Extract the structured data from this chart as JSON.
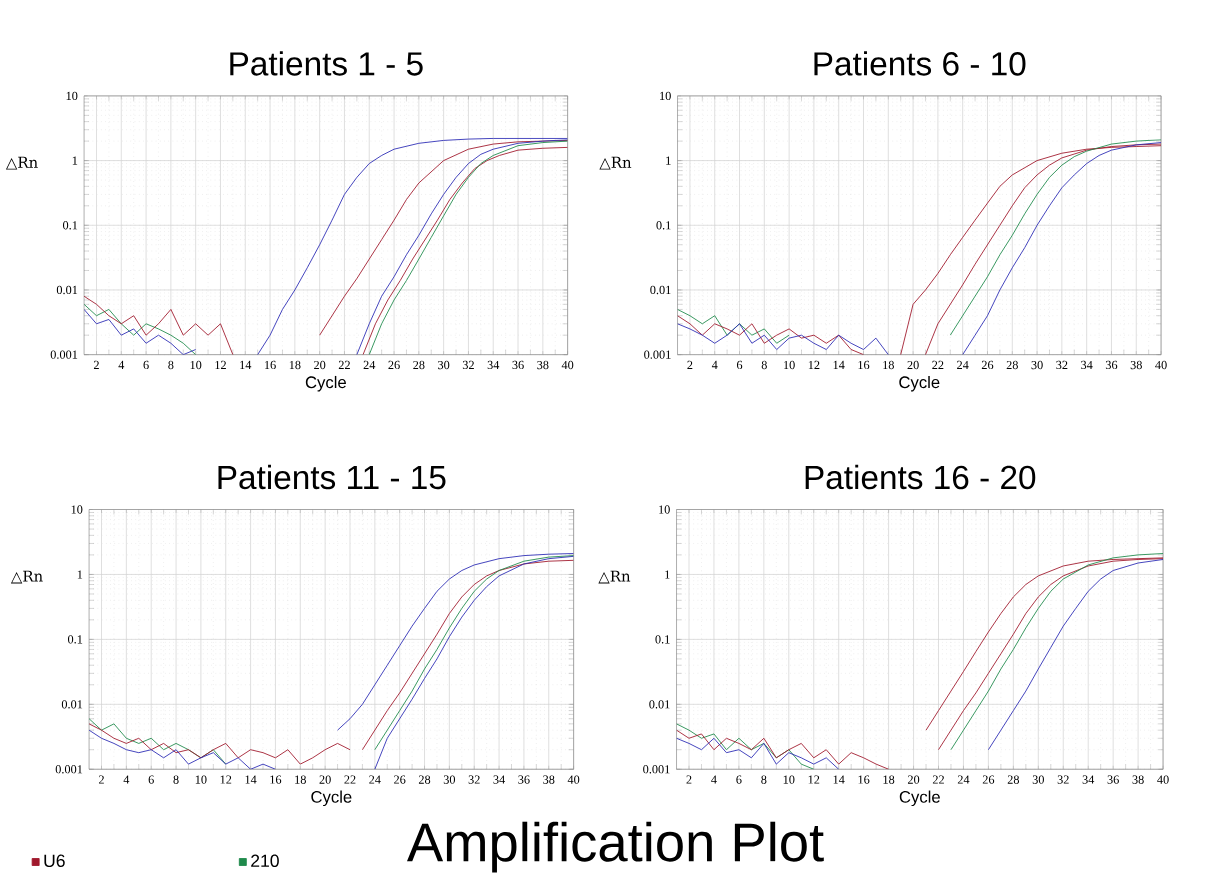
{
  "chart_data": [
    {
      "type": "line",
      "title": "Patients 1 - 5",
      "xlabel": "Cycle",
      "ylabel": "△Rn",
      "log": "y",
      "grid": true,
      "xlim": [
        1,
        40
      ],
      "ylim": [
        0.001,
        10
      ],
      "xticks": [
        2,
        4,
        6,
        8,
        10,
        12,
        14,
        16,
        18,
        20,
        22,
        24,
        26,
        28,
        30,
        32,
        34,
        36,
        38,
        40
      ],
      "yticks": [
        0.001,
        0.01,
        0.1,
        1,
        10
      ],
      "series": [
        {
          "color": "#1f8a4c",
          "x": [
            1,
            2,
            3,
            4,
            5,
            6,
            7,
            8,
            9,
            10
          ],
          "values": [
            0.006,
            0.004,
            0.005,
            0.003,
            0.002,
            0.003,
            0.0025,
            0.002,
            0.0015,
            0.001
          ]
        },
        {
          "color": "#a0182c",
          "x": [
            1,
            2,
            3,
            4,
            5,
            6,
            7,
            8,
            9,
            10,
            11,
            12,
            13
          ],
          "values": [
            0.008,
            0.006,
            0.004,
            0.003,
            0.004,
            0.002,
            0.003,
            0.005,
            0.002,
            0.003,
            0.002,
            0.003,
            0.001
          ]
        },
        {
          "color": "#2b2bb5",
          "x": [
            1,
            2,
            3,
            4,
            5,
            6,
            7,
            8,
            9,
            10
          ],
          "values": [
            0.005,
            0.003,
            0.0035,
            0.002,
            0.0025,
            0.0015,
            0.002,
            0.0015,
            0.001,
            0.0012
          ]
        },
        {
          "color": "#2b2bb5",
          "x": [
            15,
            16,
            17,
            18,
            19,
            20,
            21,
            22,
            23,
            24,
            25,
            26,
            28,
            30,
            32,
            34,
            36,
            38,
            40
          ],
          "values": [
            0.001,
            0.002,
            0.005,
            0.01,
            0.022,
            0.05,
            0.12,
            0.3,
            0.55,
            0.9,
            1.2,
            1.5,
            1.85,
            2.05,
            2.15,
            2.2,
            2.2,
            2.2,
            2.2
          ]
        },
        {
          "color": "#a0182c",
          "x": [
            20,
            21,
            22,
            23,
            24,
            25,
            26,
            27,
            28,
            30,
            32,
            34,
            36,
            38,
            40
          ],
          "values": [
            0.002,
            0.004,
            0.008,
            0.015,
            0.03,
            0.06,
            0.12,
            0.25,
            0.45,
            1.0,
            1.5,
            1.8,
            1.95,
            2.0,
            2.05
          ]
        },
        {
          "color": "#2b2bb5",
          "x": [
            23,
            24,
            25,
            26,
            27,
            28,
            29,
            30,
            31,
            32,
            33,
            34,
            36,
            38,
            40
          ],
          "values": [
            0.001,
            0.003,
            0.008,
            0.016,
            0.035,
            0.07,
            0.15,
            0.3,
            0.55,
            0.9,
            1.25,
            1.5,
            1.85,
            2.0,
            2.1
          ]
        },
        {
          "color": "#a0182c",
          "x": [
            23.5,
            24.5,
            25.5,
            26.5,
            27.5,
            28.5,
            29.5,
            30.5,
            31.5,
            32.5,
            33.5,
            34.5,
            36,
            38,
            40
          ],
          "values": [
            0.001,
            0.003,
            0.007,
            0.014,
            0.03,
            0.06,
            0.12,
            0.25,
            0.45,
            0.75,
            1.0,
            1.2,
            1.45,
            1.55,
            1.6
          ]
        },
        {
          "color": "#1f8a4c",
          "x": [
            24,
            25,
            26,
            27,
            28,
            29,
            30,
            31,
            32,
            33,
            34,
            36,
            38,
            40
          ],
          "values": [
            0.001,
            0.003,
            0.007,
            0.014,
            0.03,
            0.065,
            0.14,
            0.3,
            0.55,
            0.9,
            1.2,
            1.7,
            1.9,
            2.0
          ]
        }
      ]
    },
    {
      "type": "line",
      "title": "Patients 6 - 10",
      "xlabel": "Cycle",
      "ylabel": "△Rn",
      "log": "y",
      "grid": true,
      "xlim": [
        1,
        40
      ],
      "ylim": [
        0.001,
        10
      ],
      "xticks": [
        2,
        4,
        6,
        8,
        10,
        12,
        14,
        16,
        18,
        20,
        22,
        24,
        26,
        28,
        30,
        32,
        34,
        36,
        38,
        40
      ],
      "yticks": [
        0.001,
        0.01,
        0.1,
        1,
        10
      ],
      "series": [
        {
          "color": "#1f8a4c",
          "x": [
            1,
            2,
            3,
            4,
            5,
            6,
            7,
            8,
            9,
            10
          ],
          "values": [
            0.005,
            0.004,
            0.003,
            0.004,
            0.002,
            0.003,
            0.002,
            0.0025,
            0.0015,
            0.002
          ]
        },
        {
          "color": "#a0182c",
          "x": [
            1,
            2,
            3,
            4,
            5,
            6,
            7,
            8,
            9,
            10,
            11,
            12,
            13,
            14,
            15,
            16
          ],
          "values": [
            0.004,
            0.003,
            0.002,
            0.003,
            0.0025,
            0.002,
            0.003,
            0.0015,
            0.002,
            0.0025,
            0.0018,
            0.002,
            0.0015,
            0.002,
            0.0012,
            0.001
          ]
        },
        {
          "color": "#2b2bb5",
          "x": [
            1,
            2,
            3,
            4,
            5,
            6,
            7,
            8,
            9,
            10,
            11,
            12,
            13,
            14,
            15,
            16,
            17,
            18
          ],
          "values": [
            0.003,
            0.0025,
            0.002,
            0.0015,
            0.002,
            0.003,
            0.0015,
            0.002,
            0.0012,
            0.0018,
            0.002,
            0.0015,
            0.0012,
            0.002,
            0.0015,
            0.0012,
            0.0018,
            0.001
          ]
        },
        {
          "color": "#a0182c",
          "x": [
            19,
            20,
            21,
            22,
            23,
            24,
            25,
            26,
            27,
            28,
            30,
            32,
            34,
            36,
            38,
            40
          ],
          "values": [
            0.001,
            0.006,
            0.01,
            0.018,
            0.035,
            0.065,
            0.12,
            0.22,
            0.4,
            0.6,
            1.0,
            1.3,
            1.5,
            1.6,
            1.65,
            1.7
          ]
        },
        {
          "color": "#a0182c",
          "x": [
            21,
            22,
            23,
            24,
            25,
            26,
            27,
            28,
            29,
            30,
            31,
            32,
            34,
            36,
            38,
            40
          ],
          "values": [
            0.001,
            0.003,
            0.006,
            0.012,
            0.025,
            0.05,
            0.1,
            0.2,
            0.38,
            0.6,
            0.85,
            1.1,
            1.45,
            1.65,
            1.75,
            1.8
          ]
        },
        {
          "color": "#1f8a4c",
          "x": [
            23,
            24,
            25,
            26,
            27,
            28,
            29,
            30,
            31,
            32,
            33,
            34,
            36,
            38,
            40
          ],
          "values": [
            0.002,
            0.004,
            0.008,
            0.016,
            0.035,
            0.07,
            0.15,
            0.3,
            0.55,
            0.85,
            1.15,
            1.4,
            1.8,
            2.0,
            2.1
          ]
        },
        {
          "color": "#2b2bb5",
          "x": [
            24,
            25,
            26,
            27,
            28,
            29,
            30,
            31,
            32,
            33,
            34,
            35,
            36,
            38,
            40
          ],
          "values": [
            0.001,
            0.002,
            0.004,
            0.01,
            0.022,
            0.045,
            0.1,
            0.2,
            0.38,
            0.6,
            0.9,
            1.2,
            1.45,
            1.75,
            1.9
          ]
        }
      ]
    },
    {
      "type": "line",
      "title": "Patients 11  - 15",
      "xlabel": "Cycle",
      "ylabel": "△Rn",
      "log": "y",
      "grid": true,
      "legend": "bottom",
      "xlim": [
        1,
        40
      ],
      "ylim": [
        0.001,
        10
      ],
      "xticks": [
        2,
        4,
        6,
        8,
        10,
        12,
        14,
        16,
        18,
        20,
        22,
        24,
        26,
        28,
        30,
        32,
        34,
        36,
        38,
        40
      ],
      "yticks": [
        0.001,
        0.01,
        0.1,
        1,
        10
      ],
      "series": [
        {
          "color": "#1f8a4c",
          "x": [
            1,
            2,
            3,
            4,
            5,
            6,
            7,
            8,
            9,
            10,
            11,
            12
          ],
          "values": [
            0.006,
            0.004,
            0.005,
            0.003,
            0.0025,
            0.003,
            0.002,
            0.0025,
            0.002,
            0.0015,
            0.002,
            0.0012
          ]
        },
        {
          "color": "#a0182c",
          "x": [
            1,
            2,
            3,
            4,
            5,
            6,
            7,
            8,
            9,
            10,
            11,
            12,
            13,
            14,
            15,
            16,
            17,
            18,
            19,
            20,
            21,
            22
          ],
          "values": [
            0.005,
            0.004,
            0.003,
            0.0025,
            0.003,
            0.002,
            0.0025,
            0.0018,
            0.002,
            0.0015,
            0.002,
            0.0025,
            0.0015,
            0.002,
            0.0018,
            0.0015,
            0.002,
            0.0012,
            0.0015,
            0.002,
            0.0025,
            0.002
          ]
        },
        {
          "color": "#2b2bb5",
          "x": [
            1,
            2,
            3,
            4,
            5,
            6,
            7,
            8,
            9,
            10,
            11,
            12,
            13,
            14,
            15,
            16
          ],
          "values": [
            0.004,
            0.003,
            0.0025,
            0.002,
            0.0018,
            0.002,
            0.0015,
            0.002,
            0.0012,
            0.0015,
            0.0018,
            0.0012,
            0.0015,
            0.001,
            0.0012,
            0.001
          ]
        },
        {
          "color": "#2b2bb5",
          "x": [
            21,
            22,
            23,
            24,
            25,
            26,
            27,
            28,
            29,
            30,
            31,
            32,
            34,
            36,
            38,
            40
          ],
          "values": [
            0.004,
            0.006,
            0.01,
            0.02,
            0.04,
            0.08,
            0.16,
            0.3,
            0.55,
            0.85,
            1.15,
            1.4,
            1.75,
            1.95,
            2.05,
            2.1
          ]
        },
        {
          "name": "U6",
          "color": "#a0182c",
          "x": [
            23,
            24,
            25,
            26,
            27,
            28,
            29,
            30,
            31,
            32,
            33,
            34,
            36,
            38,
            40
          ],
          "values": [
            0.002,
            0.004,
            0.008,
            0.015,
            0.03,
            0.06,
            0.12,
            0.25,
            0.45,
            0.7,
            0.95,
            1.15,
            1.45,
            1.6,
            1.65
          ]
        },
        {
          "name": "210",
          "color": "#1f8a4c",
          "x": [
            24,
            25,
            26,
            27,
            28,
            29,
            30,
            31,
            32,
            33,
            34,
            36,
            38,
            40
          ],
          "values": [
            0.002,
            0.004,
            0.008,
            0.016,
            0.035,
            0.07,
            0.15,
            0.3,
            0.55,
            0.85,
            1.15,
            1.6,
            1.85,
            1.95
          ]
        },
        {
          "color": "#2b2bb5",
          "x": [
            24,
            25,
            26,
            27,
            28,
            29,
            30,
            31,
            32,
            33,
            34,
            36,
            38,
            40
          ],
          "values": [
            0.001,
            0.003,
            0.006,
            0.012,
            0.025,
            0.05,
            0.11,
            0.22,
            0.4,
            0.65,
            0.95,
            1.45,
            1.75,
            1.9
          ]
        }
      ]
    },
    {
      "type": "line",
      "title": "Patients 16  - 20",
      "xlabel": "Cycle",
      "ylabel": "△Rn",
      "log": "y",
      "grid": true,
      "xlim": [
        1,
        40
      ],
      "ylim": [
        0.001,
        10
      ],
      "xticks": [
        2,
        4,
        6,
        8,
        10,
        12,
        14,
        16,
        18,
        20,
        22,
        24,
        26,
        28,
        30,
        32,
        34,
        36,
        38,
        40
      ],
      "yticks": [
        0.001,
        0.01,
        0.1,
        1,
        10
      ],
      "series": [
        {
          "color": "#1f8a4c",
          "x": [
            1,
            2,
            3,
            4,
            5,
            6,
            7,
            8,
            9,
            10,
            11,
            12
          ],
          "values": [
            0.005,
            0.004,
            0.003,
            0.0035,
            0.002,
            0.003,
            0.002,
            0.0025,
            0.0015,
            0.002,
            0.0012,
            0.001
          ]
        },
        {
          "color": "#a0182c",
          "x": [
            1,
            2,
            3,
            4,
            5,
            6,
            7,
            8,
            9,
            10,
            11,
            12,
            13,
            14,
            15,
            16,
            17,
            18
          ],
          "values": [
            0.004,
            0.003,
            0.0035,
            0.002,
            0.003,
            0.0025,
            0.002,
            0.003,
            0.0015,
            0.002,
            0.0025,
            0.0015,
            0.002,
            0.0012,
            0.0018,
            0.0015,
            0.0012,
            0.001
          ]
        },
        {
          "color": "#2b2bb5",
          "x": [
            1,
            2,
            3,
            4,
            5,
            6,
            7,
            8,
            9,
            10,
            11,
            12,
            13,
            14
          ],
          "values": [
            0.003,
            0.0025,
            0.002,
            0.003,
            0.0018,
            0.002,
            0.0015,
            0.0025,
            0.0012,
            0.0018,
            0.0015,
            0.0012,
            0.0015,
            0.001
          ]
        },
        {
          "color": "#a0182c",
          "x": [
            21,
            22,
            23,
            24,
            25,
            26,
            27,
            28,
            29,
            30,
            32,
            34,
            36,
            38,
            40
          ],
          "values": [
            0.004,
            0.008,
            0.016,
            0.032,
            0.065,
            0.13,
            0.25,
            0.45,
            0.7,
            0.95,
            1.35,
            1.6,
            1.7,
            1.75,
            1.8
          ]
        },
        {
          "color": "#a0182c",
          "x": [
            22,
            23,
            24,
            25,
            26,
            27,
            28,
            29,
            30,
            31,
            32,
            34,
            36,
            38,
            40
          ],
          "values": [
            0.002,
            0.004,
            0.008,
            0.015,
            0.03,
            0.06,
            0.12,
            0.25,
            0.45,
            0.7,
            0.95,
            1.35,
            1.6,
            1.7,
            1.75
          ]
        },
        {
          "color": "#1f8a4c",
          "x": [
            23,
            24,
            25,
            26,
            27,
            28,
            29,
            30,
            31,
            32,
            34,
            36,
            38,
            40
          ],
          "values": [
            0.002,
            0.004,
            0.008,
            0.016,
            0.035,
            0.07,
            0.15,
            0.3,
            0.55,
            0.85,
            1.4,
            1.8,
            2.0,
            2.1
          ]
        },
        {
          "color": "#2b2bb5",
          "x": [
            26,
            27,
            28,
            29,
            30,
            31,
            32,
            33,
            34,
            35,
            36,
            38,
            40
          ],
          "values": [
            0.002,
            0.004,
            0.008,
            0.016,
            0.035,
            0.075,
            0.16,
            0.3,
            0.55,
            0.85,
            1.15,
            1.5,
            1.7
          ]
        }
      ]
    },
    {
      "type": "other",
      "title": "Amplification Plot"
    }
  ]
}
